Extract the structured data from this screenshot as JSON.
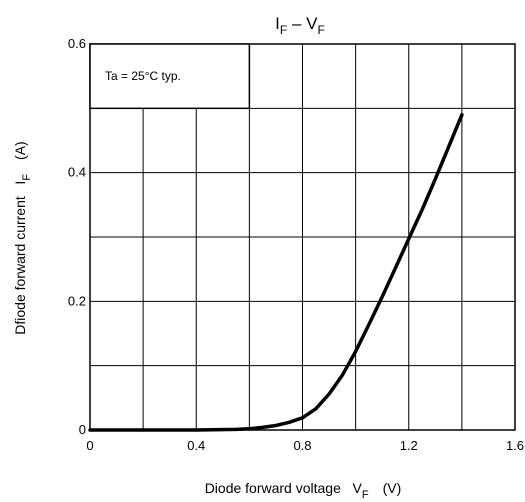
{
  "chart_data": {
    "type": "line",
    "title": {
      "main": "I",
      "sub1": "F",
      "dash": " – V",
      "sub2": "F"
    },
    "xlabel": {
      "text": "Diode forward voltage   V",
      "sub": "F",
      "unit": "(V)"
    },
    "ylabel": {
      "text": "Dfiode forward current   I",
      "sub": "F",
      "unit": "(A)"
    },
    "annotation": "Ta = 25°C typ.",
    "xlim": [
      0,
      1.6
    ],
    "ylim": [
      0,
      0.6
    ],
    "x_ticks": [
      "0",
      "0.4",
      "0.8",
      "1.2",
      "1.6"
    ],
    "y_ticks": [
      "0",
      "0.2",
      "0.4",
      "0.6"
    ],
    "grid": true,
    "series": [
      {
        "points": [
          [
            0.0,
            0.0
          ],
          [
            0.4,
            0.0
          ],
          [
            0.55,
            0.001
          ],
          [
            0.6,
            0.002
          ],
          [
            0.65,
            0.004
          ],
          [
            0.7,
            0.007
          ],
          [
            0.75,
            0.012
          ],
          [
            0.8,
            0.019
          ],
          [
            0.85,
            0.033
          ],
          [
            0.9,
            0.056
          ],
          [
            0.95,
            0.085
          ],
          [
            1.0,
            0.122
          ],
          [
            1.05,
            0.164
          ],
          [
            1.1,
            0.207
          ],
          [
            1.15,
            0.252
          ],
          [
            1.2,
            0.297
          ],
          [
            1.25,
            0.342
          ],
          [
            1.3,
            0.39
          ],
          [
            1.35,
            0.44
          ],
          [
            1.4,
            0.49
          ]
        ],
        "color": "#000000"
      }
    ]
  }
}
